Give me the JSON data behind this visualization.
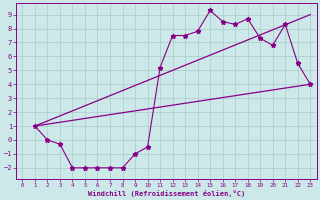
{
  "xlabel": "Windchill (Refroidissement éolien,°C)",
  "background_color": "#cce8e8",
  "line_color": "#880088",
  "grid_color": "#aacccc",
  "xlim": [
    -0.5,
    23.5
  ],
  "ylim": [
    -2.8,
    9.8
  ],
  "xticks": [
    0,
    1,
    2,
    3,
    4,
    5,
    6,
    7,
    8,
    9,
    10,
    11,
    12,
    13,
    14,
    15,
    16,
    17,
    18,
    19,
    20,
    21,
    22,
    23
  ],
  "yticks": [
    -2,
    -1,
    0,
    1,
    2,
    3,
    4,
    5,
    6,
    7,
    8,
    9
  ],
  "line1_x": [
    1,
    2,
    3,
    4,
    5,
    6,
    7,
    8,
    9,
    10,
    11,
    12,
    13,
    14,
    15,
    16,
    17,
    18,
    19,
    20,
    21,
    22,
    23
  ],
  "line1_y": [
    1.0,
    0.0,
    -0.3,
    -2.0,
    -2.0,
    -2.0,
    -2.0,
    -2.0,
    -1.0,
    -0.5,
    5.2,
    7.5,
    7.5,
    7.8,
    9.3,
    8.5,
    8.3,
    8.7,
    7.3,
    6.8,
    8.3,
    5.5,
    4.0
  ],
  "line2_x": [
    1,
    23
  ],
  "line2_y": [
    1.0,
    4.0
  ],
  "line3_x": [
    1,
    23
  ],
  "line3_y": [
    1.0,
    9.0
  ]
}
